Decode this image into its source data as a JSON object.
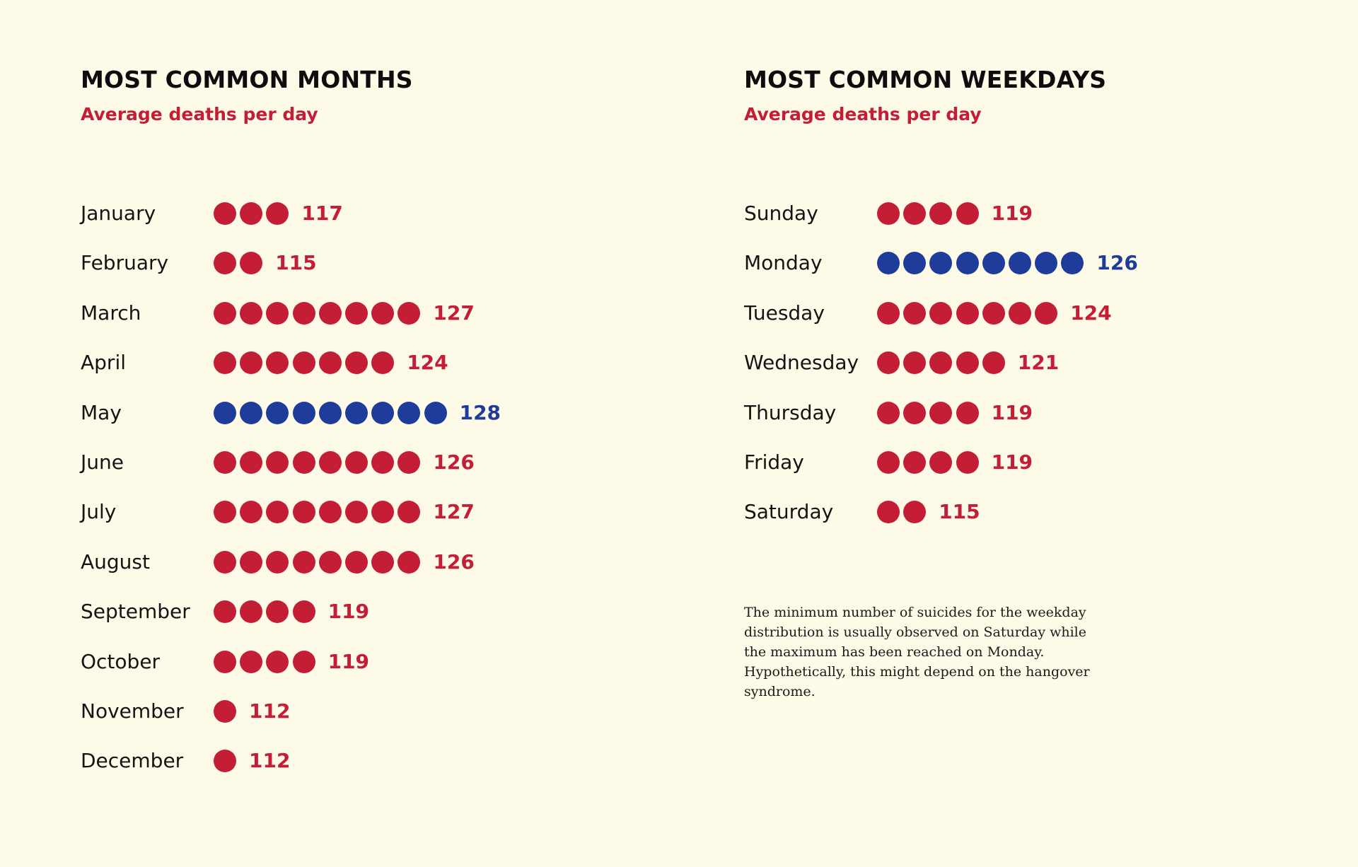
{
  "colors": {
    "normal": "#c41e36",
    "max": "#1f3c9a",
    "background": "#fdfae8"
  },
  "months_chart": {
    "title": "MOST COMMON MONTHS",
    "subtitle": "Average deaths per day"
  },
  "weekdays_chart": {
    "title": "MOST COMMON WEEKDAYS",
    "subtitle": "Average deaths per day"
  },
  "note": "The minimum number of suicides for the weekday distribution is usually observed on Saturday while the maximum has been reached on Monday. Hypothetically, this might depend on the hangover syndrome.",
  "chart_data": [
    {
      "type": "bar",
      "title": "MOST COMMON MONTHS",
      "subtitle": "Average deaths per day",
      "categories": [
        "January",
        "February",
        "March",
        "April",
        "May",
        "June",
        "July",
        "August",
        "September",
        "October",
        "November",
        "December"
      ],
      "values": [
        117,
        115,
        127,
        124,
        128,
        126,
        127,
        126,
        119,
        119,
        112,
        112
      ],
      "value_labels": [
        "117",
        "115",
        "127",
        "124",
        "128",
        "126",
        "127",
        "126",
        "119",
        "119",
        "112",
        "112"
      ],
      "dots": [
        3,
        2,
        8,
        7,
        9,
        8,
        8,
        8,
        4,
        4,
        1,
        1
      ],
      "highlight": "May"
    },
    {
      "type": "bar",
      "title": "MOST COMMON WEEKDAYS",
      "subtitle": "Average deaths per day",
      "categories": [
        "Sunday",
        "Monday",
        "Tuesday",
        "Wednesday",
        "Thursday",
        "Friday",
        "Saturday"
      ],
      "values": [
        119,
        126,
        124,
        121,
        119,
        119,
        115
      ],
      "value_labels": [
        "119",
        "126",
        "124",
        "121",
        "119",
        "119",
        "115"
      ],
      "dots": [
        4,
        8,
        7,
        5,
        4,
        4,
        2
      ],
      "highlight": "Monday"
    }
  ]
}
